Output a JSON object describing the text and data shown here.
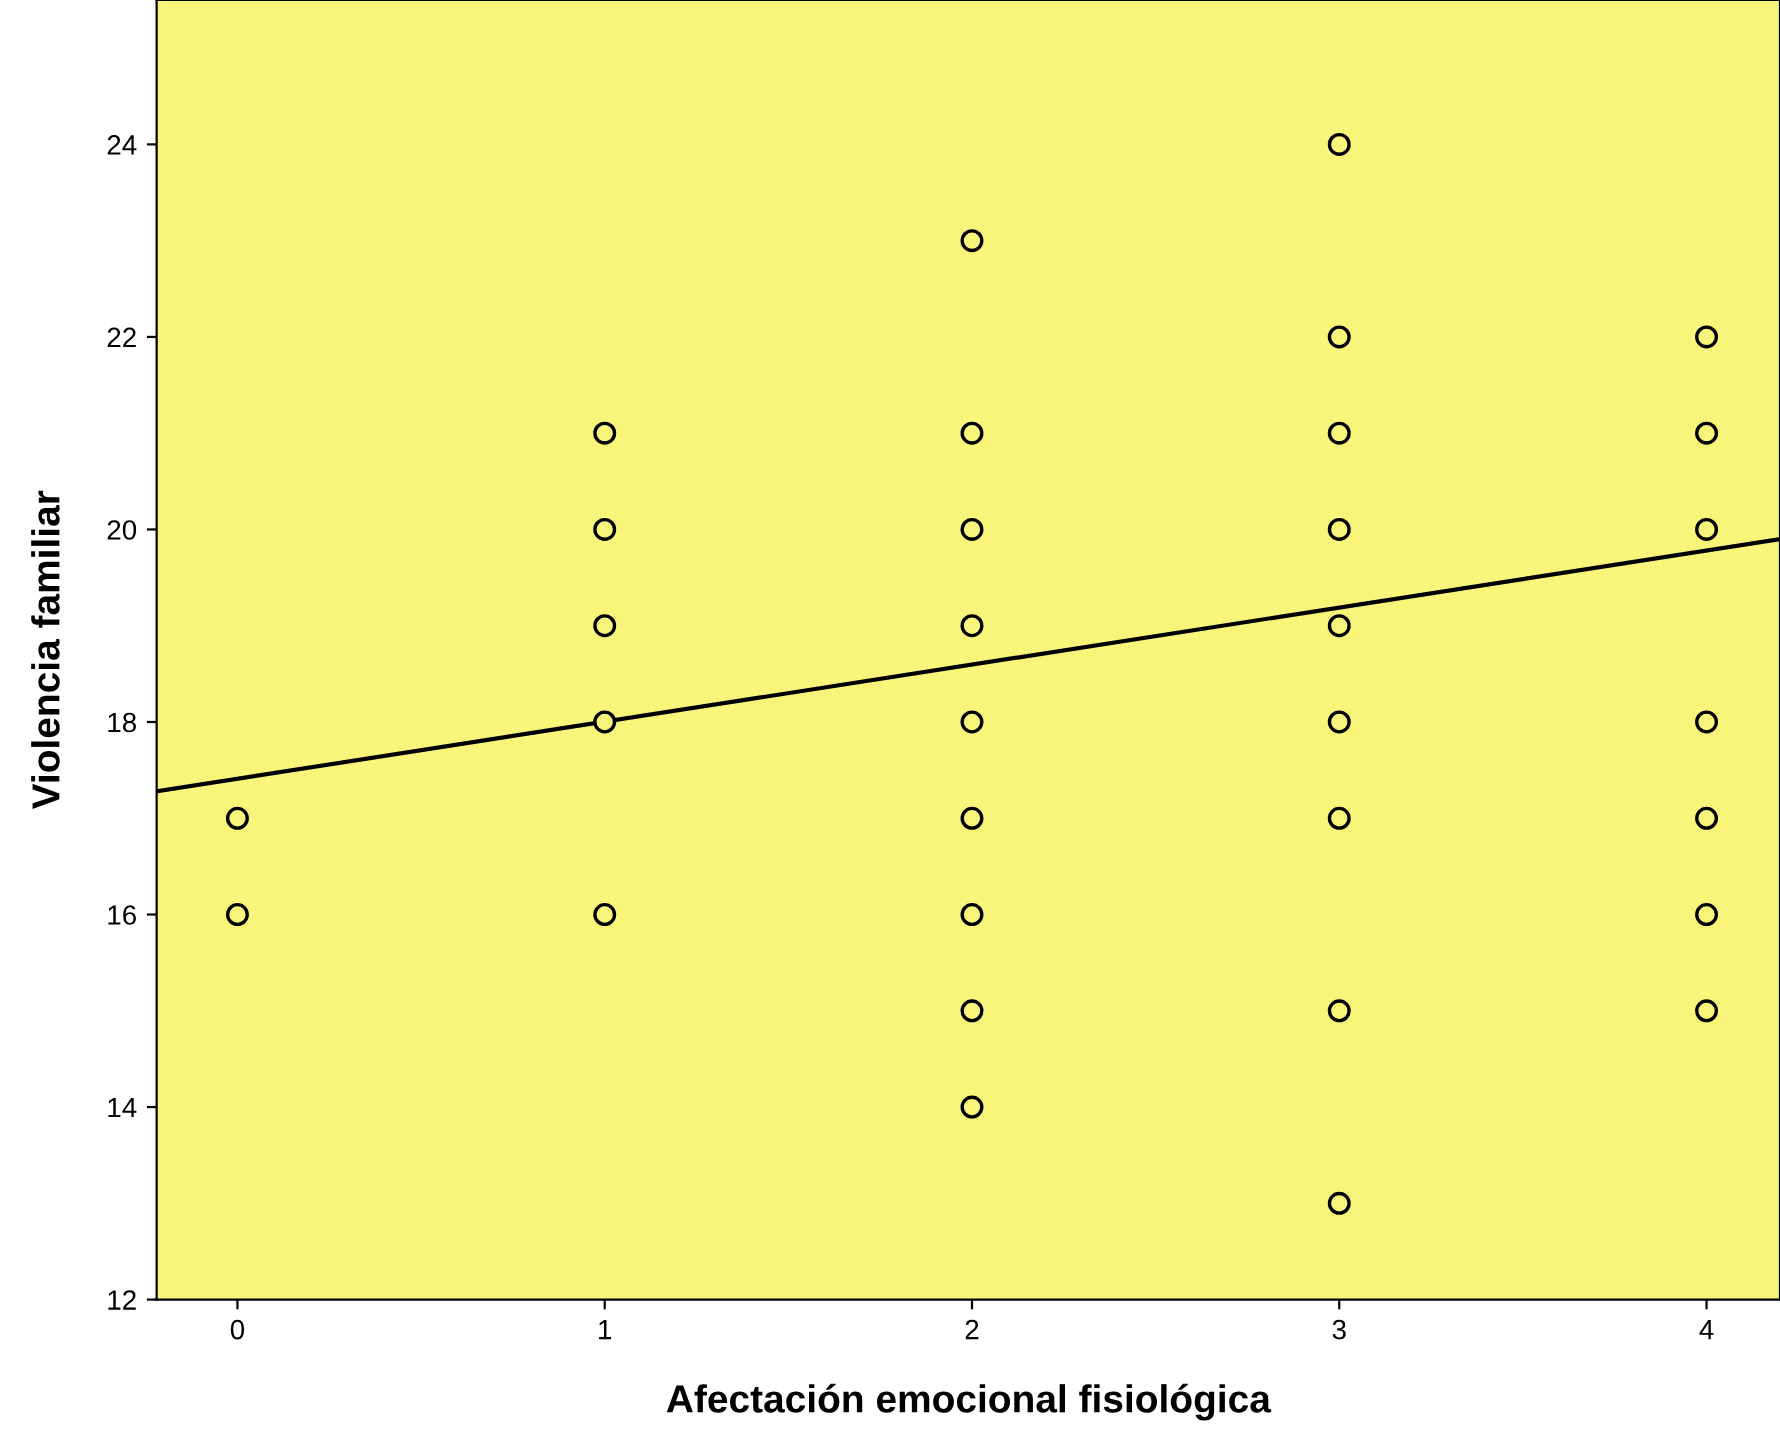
{
  "chart_data": {
    "type": "scatter",
    "xlabel": "Afectación emocional fisiológica",
    "ylabel": "Violencia familiar",
    "series": [
      {
        "color": "#000000",
        "marker": "circle",
        "x": [
          0,
          0,
          1,
          1,
          1,
          1,
          1,
          2,
          2,
          2,
          2,
          2,
          2,
          2,
          2,
          2,
          3,
          3,
          3,
          3,
          3,
          3,
          3,
          3,
          3,
          4,
          4,
          4,
          4,
          4,
          4,
          4
        ],
        "values": [
          17,
          16,
          21,
          20,
          19,
          18,
          16,
          23,
          21,
          20,
          19,
          18,
          17,
          16,
          15,
          14,
          24,
          22,
          21,
          20,
          19,
          18,
          17,
          15,
          13,
          22,
          21,
          20,
          18,
          17,
          16,
          15
        ]
      },
      {
        "type": "line",
        "color": "#000000",
        "marker": "none",
        "line_style": "solid",
        "x": [
          -0.22,
          4.2
        ],
        "values": [
          17.28,
          19.9
        ]
      }
    ],
    "xlim": [
      -0.22,
      4.2
    ],
    "ylim": [
      12,
      25.5
    ],
    "xticks": [
      0,
      1,
      2,
      3,
      4
    ],
    "yticks": [
      12,
      14,
      16,
      18,
      20,
      22,
      24
    ],
    "grid": false,
    "legend": false
  }
}
